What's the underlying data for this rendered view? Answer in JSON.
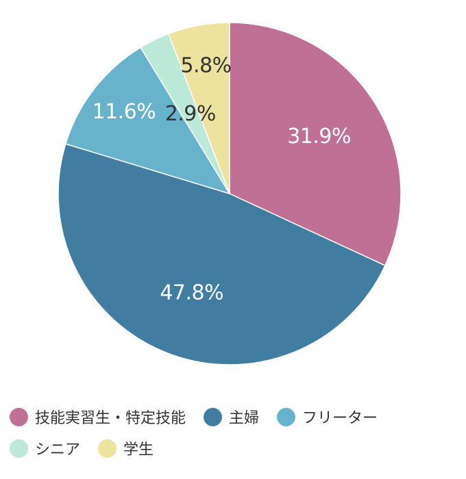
{
  "chart_data": {
    "type": "pie",
    "title": "",
    "start": "12 o'clock",
    "direction": "clockwise",
    "slices": [
      {
        "label": "技能実習生・特定技能",
        "value": 31.9,
        "value_label": "31.9%",
        "color": "#bf7094",
        "label_color": "#ffffff"
      },
      {
        "label": "主婦",
        "value": 47.8,
        "value_label": "47.8%",
        "color": "#417da1",
        "label_color": "#ffffff"
      },
      {
        "label": "フリーター",
        "value": 11.6,
        "value_label": "11.6%",
        "color": "#68b3cc",
        "label_color": "#ffffff"
      },
      {
        "label": "シニア",
        "value": 2.9,
        "value_label": "2.9%",
        "color": "#bde9d9",
        "label_color": "#333333"
      },
      {
        "label": "学生",
        "value": 5.8,
        "value_label": "5.8%",
        "color": "#ece49e",
        "label_color": "#333333"
      }
    ],
    "legend": {
      "placement": "bottom",
      "rows": [
        [
          "技能実習生・特定技能",
          "主婦",
          "フリーター"
        ],
        [
          "シニア",
          "学生"
        ]
      ]
    }
  }
}
